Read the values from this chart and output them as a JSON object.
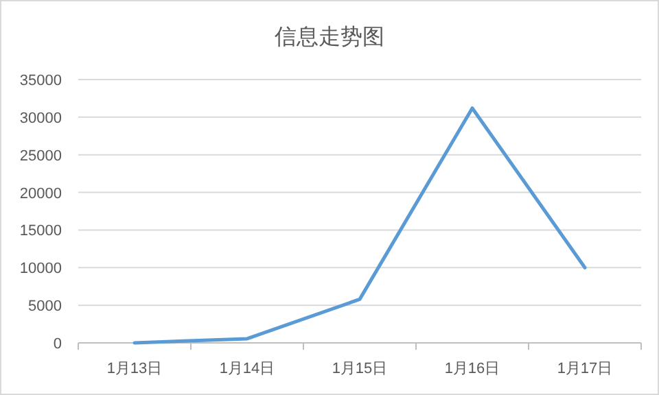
{
  "chart_data": {
    "type": "line",
    "title": "信息走势图",
    "categories": [
      "1月13日",
      "1月14日",
      "1月15日",
      "1月16日",
      "1月17日"
    ],
    "series": [
      {
        "color": "#5b9bd5",
        "values": [
          0,
          550,
          5800,
          31200,
          10000
        ]
      }
    ],
    "ylim": [
      0,
      35000
    ],
    "yticks": [
      0,
      5000,
      10000,
      15000,
      20000,
      25000,
      30000,
      35000
    ],
    "grid": "y"
  }
}
